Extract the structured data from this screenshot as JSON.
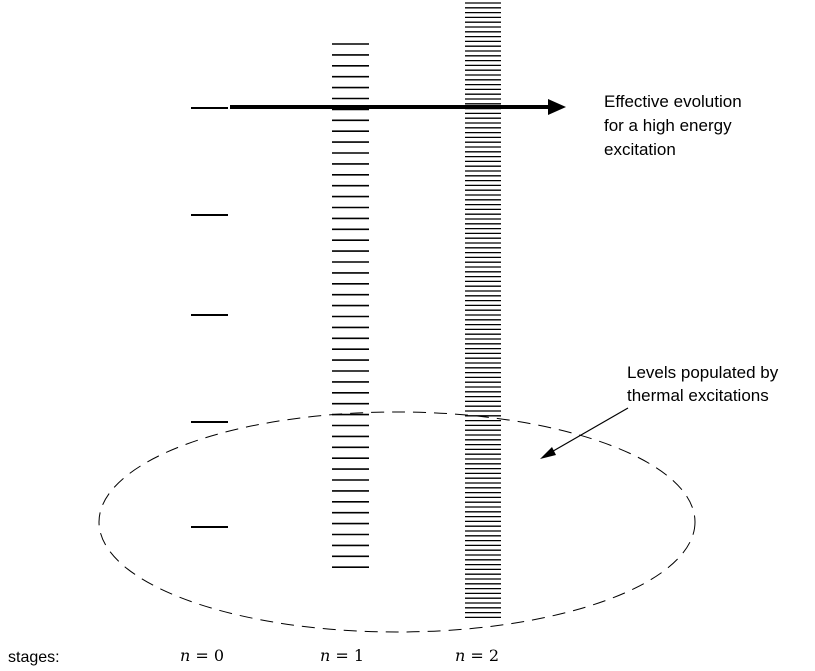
{
  "annotations": {
    "evolution_lines": [
      "Effective evolution",
      "for a high energy",
      "excitation"
    ],
    "thermal_lines": [
      "Levels populated by",
      "thermal excitations"
    ]
  },
  "stages": {
    "prefix": "stages:",
    "labels": [
      {
        "var": "n",
        "eq": " = 0"
      },
      {
        "var": "n",
        "eq": " = 1"
      },
      {
        "var": "n",
        "eq": " = 2"
      }
    ]
  },
  "colors": {
    "ink": "#000000",
    "background": "#ffffff"
  }
}
